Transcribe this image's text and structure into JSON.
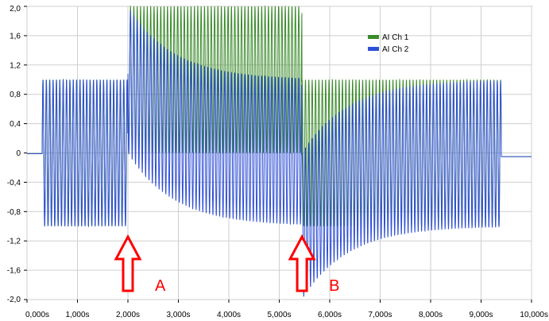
{
  "chart_data": {
    "type": "line",
    "xlim": [
      0,
      10
    ],
    "ylim": [
      -2,
      2
    ],
    "x_ticks": [
      0,
      1,
      2,
      3,
      4,
      5,
      6,
      7,
      8,
      9,
      10
    ],
    "x_tick_labels": [
      "0,000s",
      "1,000s",
      "2,000s",
      "3,000s",
      "4,000s",
      "5,000s",
      "6,000s",
      "7,000s",
      "8,000s",
      "9,000s",
      "10,000s"
    ],
    "y_ticks": [
      2,
      1.6,
      1.2,
      0.8,
      0.4,
      0,
      -0.4,
      -0.8,
      -1.2,
      -1.6,
      -2
    ],
    "y_tick_labels": [
      "2,0",
      "1,6",
      "1,2",
      "0,8",
      "0,4",
      "0",
      "-0,4",
      "-0,8",
      "-1,2",
      "-1,6",
      "-2,0"
    ],
    "grid": true,
    "legend_position": "top-right",
    "series": [
      {
        "name": "AI Ch 1",
        "color": "#3a8a2a",
        "signal": {
          "start": 0.3,
          "end": 9.4,
          "period_s": 0.0667,
          "amplitude": 1.0,
          "segments": [
            {
              "from": 0.3,
              "to": 2.0,
              "min": -1.0,
              "max": 1.0
            },
            {
              "from": 2.0,
              "to": 5.45,
              "min": 0.0,
              "max": 2.0
            },
            {
              "from": 5.45,
              "to": 9.4,
              "min": -1.0,
              "max": 1.0
            }
          ],
          "baseline_before": -0.01,
          "baseline_after": -0.05
        }
      },
      {
        "name": "AI Ch 2",
        "color": "#2f4fd6",
        "signal": {
          "start": 0.3,
          "end": 9.4,
          "period_s": 0.0667,
          "amplitude": 1.0,
          "transient": [
            {
              "at": 2.0,
              "jump_to": 1.0,
              "tau_s": 0.9
            },
            {
              "at": 5.45,
              "jump_to": -1.0,
              "tau_s": 0.9
            }
          ],
          "baseline_before": -0.01,
          "baseline_after": -0.05
        }
      }
    ],
    "annotations": [
      {
        "label": "A",
        "x": 2.0,
        "type": "arrow-up",
        "color": "#ff0000"
      },
      {
        "label": "B",
        "x": 5.45,
        "type": "arrow-up",
        "color": "#ff0000"
      }
    ]
  }
}
